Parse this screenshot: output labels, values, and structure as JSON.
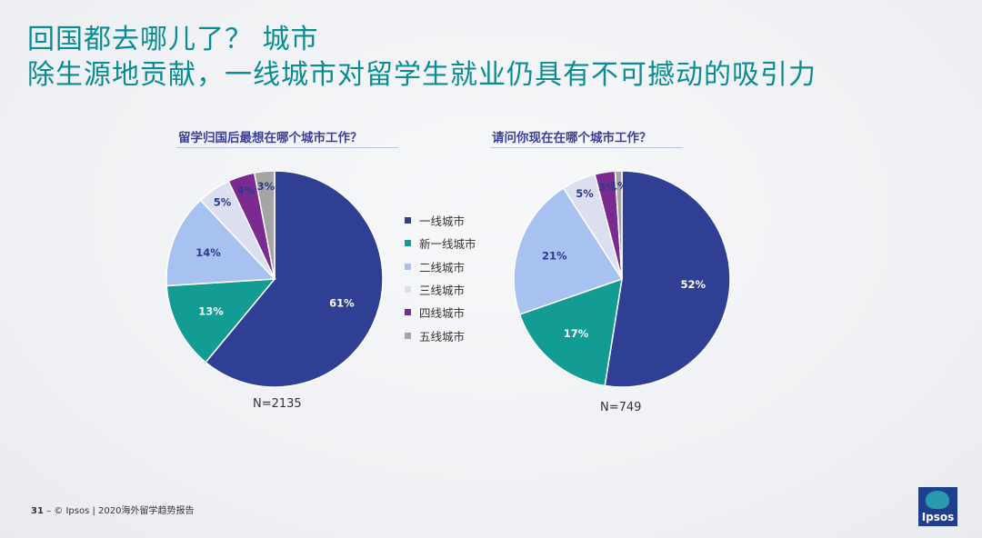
{
  "title_line1": "回国都去哪儿了？ 城市",
  "title_line2": "除生源地贡献，一线城市对留学生就业仍具有不可撼动的吸引力",
  "legend": [
    {
      "label": "一线城市",
      "color": "#2f3f94"
    },
    {
      "label": "新一线城市",
      "color": "#139c93"
    },
    {
      "label": "二线城市",
      "color": "#a7c1f1"
    },
    {
      "label": "三线城市",
      "color": "#dcdff0"
    },
    {
      "label": "四线城市",
      "color": "#7b2a8f"
    },
    {
      "label": "五线城市",
      "color": "#a5a5a5"
    }
  ],
  "chart_data": [
    {
      "type": "pie",
      "title": "留学归国后最想在哪个城市工作？",
      "categories": [
        "一线城市",
        "新一线城市",
        "二线城市",
        "三线城市",
        "四线城市",
        "五线城市"
      ],
      "values": [
        61,
        13,
        14,
        5,
        4,
        3
      ],
      "labels": [
        "61%",
        "13%",
        "14%",
        "5%",
        "4%",
        "3%"
      ],
      "note": "N=2135"
    },
    {
      "type": "pie",
      "title": "请问你现在在哪个城市工作？",
      "categories": [
        "一线城市",
        "新一线城市",
        "二线城市",
        "三线城市",
        "四线城市",
        "五线城市"
      ],
      "values": [
        52,
        17,
        21,
        5,
        3,
        1
      ],
      "labels": [
        "52%",
        "17%",
        "21%",
        "5%",
        "3%",
        "1%"
      ],
      "note": "N=749"
    }
  ],
  "footer": {
    "page": "31",
    "text": "–  © Ipsos | 2020海外留学趋势报告"
  },
  "logo_text": "Ipsos"
}
